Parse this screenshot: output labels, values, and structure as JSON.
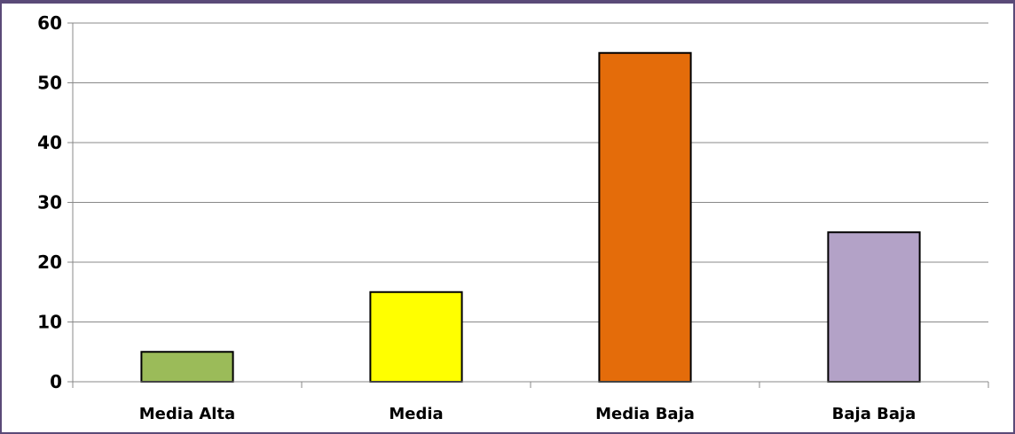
{
  "chart_data": {
    "type": "bar",
    "categories": [
      "Media Alta",
      "Media",
      "Media Baja",
      "Baja Baja"
    ],
    "values": [
      5,
      15,
      55,
      25
    ],
    "colors": [
      "#9bbb59",
      "#ffff00",
      "#e46c0a",
      "#b3a2c7"
    ],
    "title": "",
    "xlabel": "",
    "ylabel": "",
    "ylim": [
      0,
      60
    ],
    "yticks": [
      0,
      10,
      20,
      30,
      40,
      50,
      60
    ],
    "grid": true,
    "gridline_color": "#888888",
    "bar_edge_color": "#000000",
    "frame_color": "#5a4a78"
  }
}
